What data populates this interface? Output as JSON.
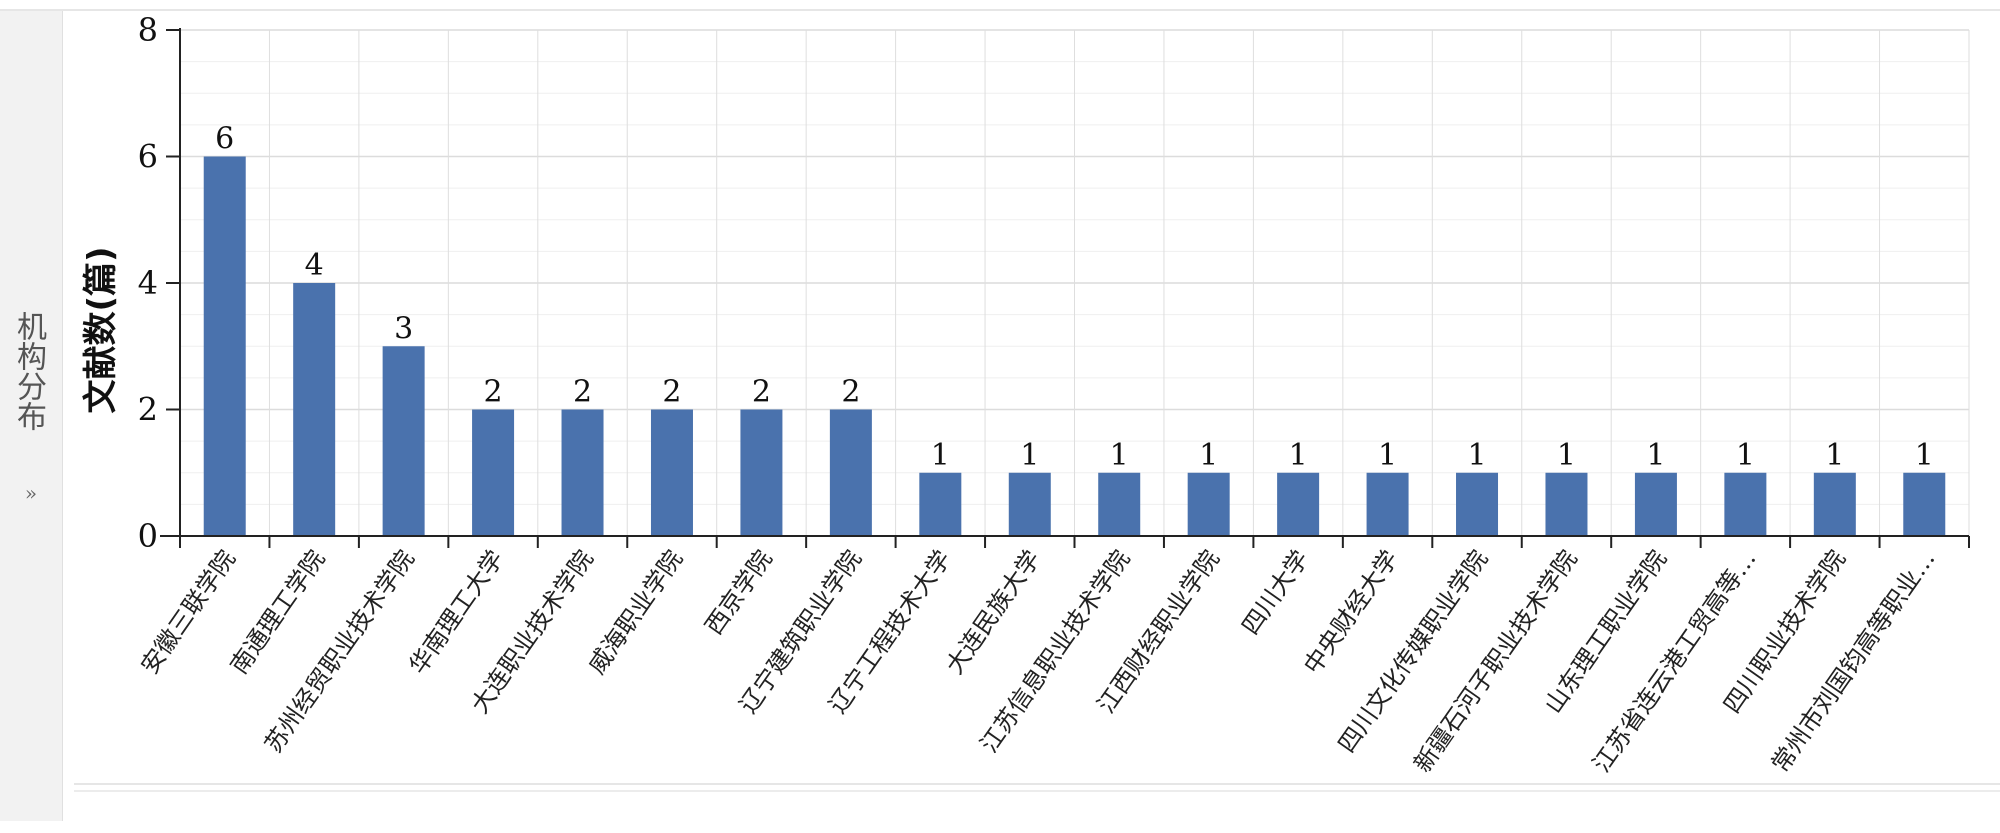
{
  "panel": {
    "title": "机构分布",
    "expand_label": "»"
  },
  "chart_data": {
    "type": "bar",
    "title": "",
    "xlabel": "",
    "ylabel": "文献数(篇)",
    "ylim": [
      0,
      8
    ],
    "yticks": [
      0,
      2,
      4,
      6,
      8
    ],
    "grid": true,
    "bar_color": "#4a72ad",
    "categories": [
      "安徽三联学院",
      "南通理工学院",
      "苏州经贸职业技术学院",
      "华南理工大学",
      "大连职业技术学院",
      "威海职业学院",
      "西京学院",
      "辽宁建筑职业学院",
      "辽宁工程技术大学",
      "大连民族大学",
      "江苏信息职业技术学院",
      "江西财经职业学院",
      "四川大学",
      "中央财经大学",
      "四川文化传媒职业学院",
      "新疆石河子职业技术学院",
      "山东理工职业学院",
      "江苏省连云港工贸高等…",
      "四川职业技术学院",
      "常州市刘国钧高等职业…"
    ],
    "values": [
      6,
      4,
      3,
      2,
      2,
      2,
      2,
      2,
      1,
      1,
      1,
      1,
      1,
      1,
      1,
      1,
      1,
      1,
      1,
      1
    ]
  }
}
